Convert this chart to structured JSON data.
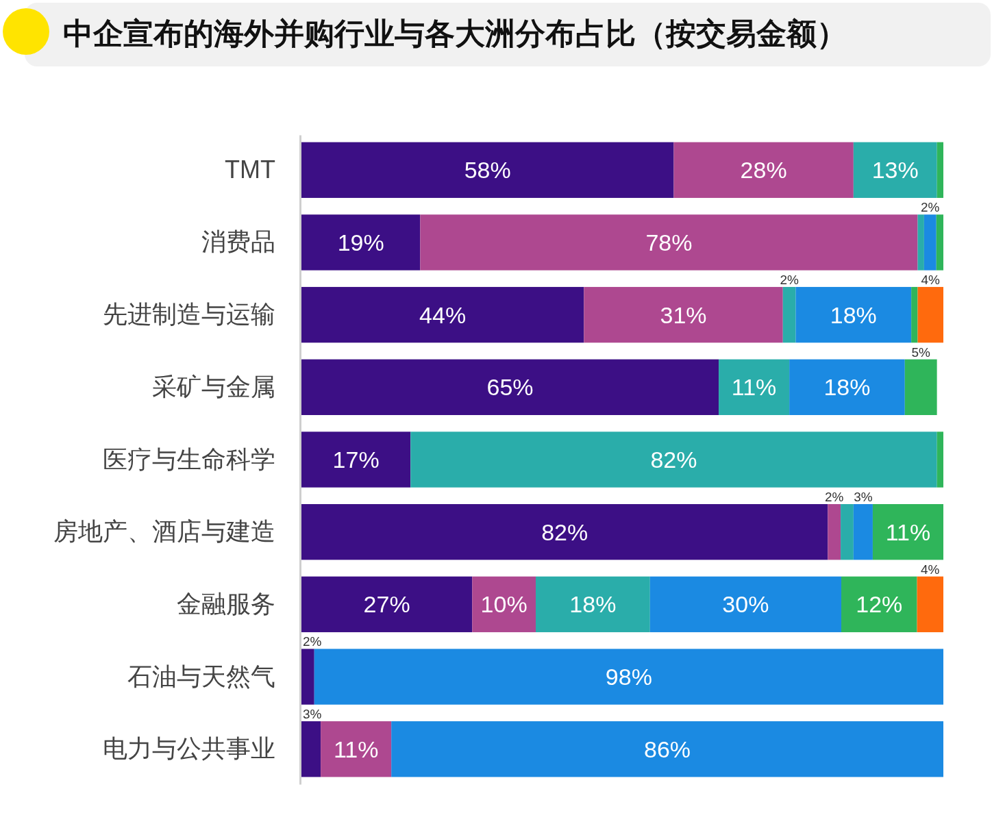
{
  "chart_data": {
    "type": "bar",
    "orientation": "horizontal",
    "stacked": true,
    "title": "中企宣布的海外并购行业与各大洲分布占比（按交易金额）",
    "categories": [
      "TMT",
      "消费品",
      "先进制造与运输",
      "采矿与金属",
      "医疗与生命科学",
      "房地产、酒店与建造",
      "金融服务",
      "石油与天然气",
      "电力与公共事业"
    ],
    "xlim": [
      0,
      100
    ],
    "tick_labels": "y",
    "series": [
      {
        "color": "#3c0f85",
        "values": [
          58,
          18.5,
          44,
          65,
          17,
          82,
          26.6,
          2,
          3
        ],
        "value_labels": [
          "58%",
          "19%",
          "44%",
          "65%",
          "17%",
          "82%",
          "27%",
          "2%",
          "3%"
        ]
      },
      {
        "color": "#ae4890",
        "values": [
          28,
          77.5,
          31,
          null,
          null,
          2,
          9.9,
          null,
          11
        ],
        "value_labels": [
          "28%",
          "78%",
          "31%",
          null,
          null,
          "2%",
          "10%",
          null,
          "11%"
        ]
      },
      {
        "color": "#2aadaa",
        "values": [
          13,
          1,
          2,
          11,
          82,
          2,
          17.8,
          null,
          null
        ],
        "value_labels": [
          "13%",
          null,
          "2%",
          "11%",
          "82%",
          null,
          "18%",
          null,
          null
        ]
      },
      {
        "color": "#1b8ae2",
        "values": [
          null,
          1.9,
          18,
          18,
          null,
          3,
          29.8,
          98,
          86
        ],
        "value_labels": [
          null,
          "2%",
          "18%",
          "18%",
          null,
          "3%",
          "30%",
          "98%",
          "86%"
        ]
      },
      {
        "color": "#2fb55a",
        "values": [
          1,
          1.1,
          1,
          5,
          1,
          11,
          11.8,
          null,
          null
        ],
        "value_labels": [
          null,
          null,
          null,
          "5%",
          null,
          "11%",
          "12%",
          null,
          null
        ]
      },
      {
        "color": "#ff6a0d",
        "values": [
          null,
          null,
          4,
          null,
          null,
          null,
          4.1,
          null,
          null
        ],
        "value_labels": [
          null,
          null,
          "4%",
          null,
          null,
          null,
          "4%",
          null,
          null
        ]
      }
    ]
  }
}
